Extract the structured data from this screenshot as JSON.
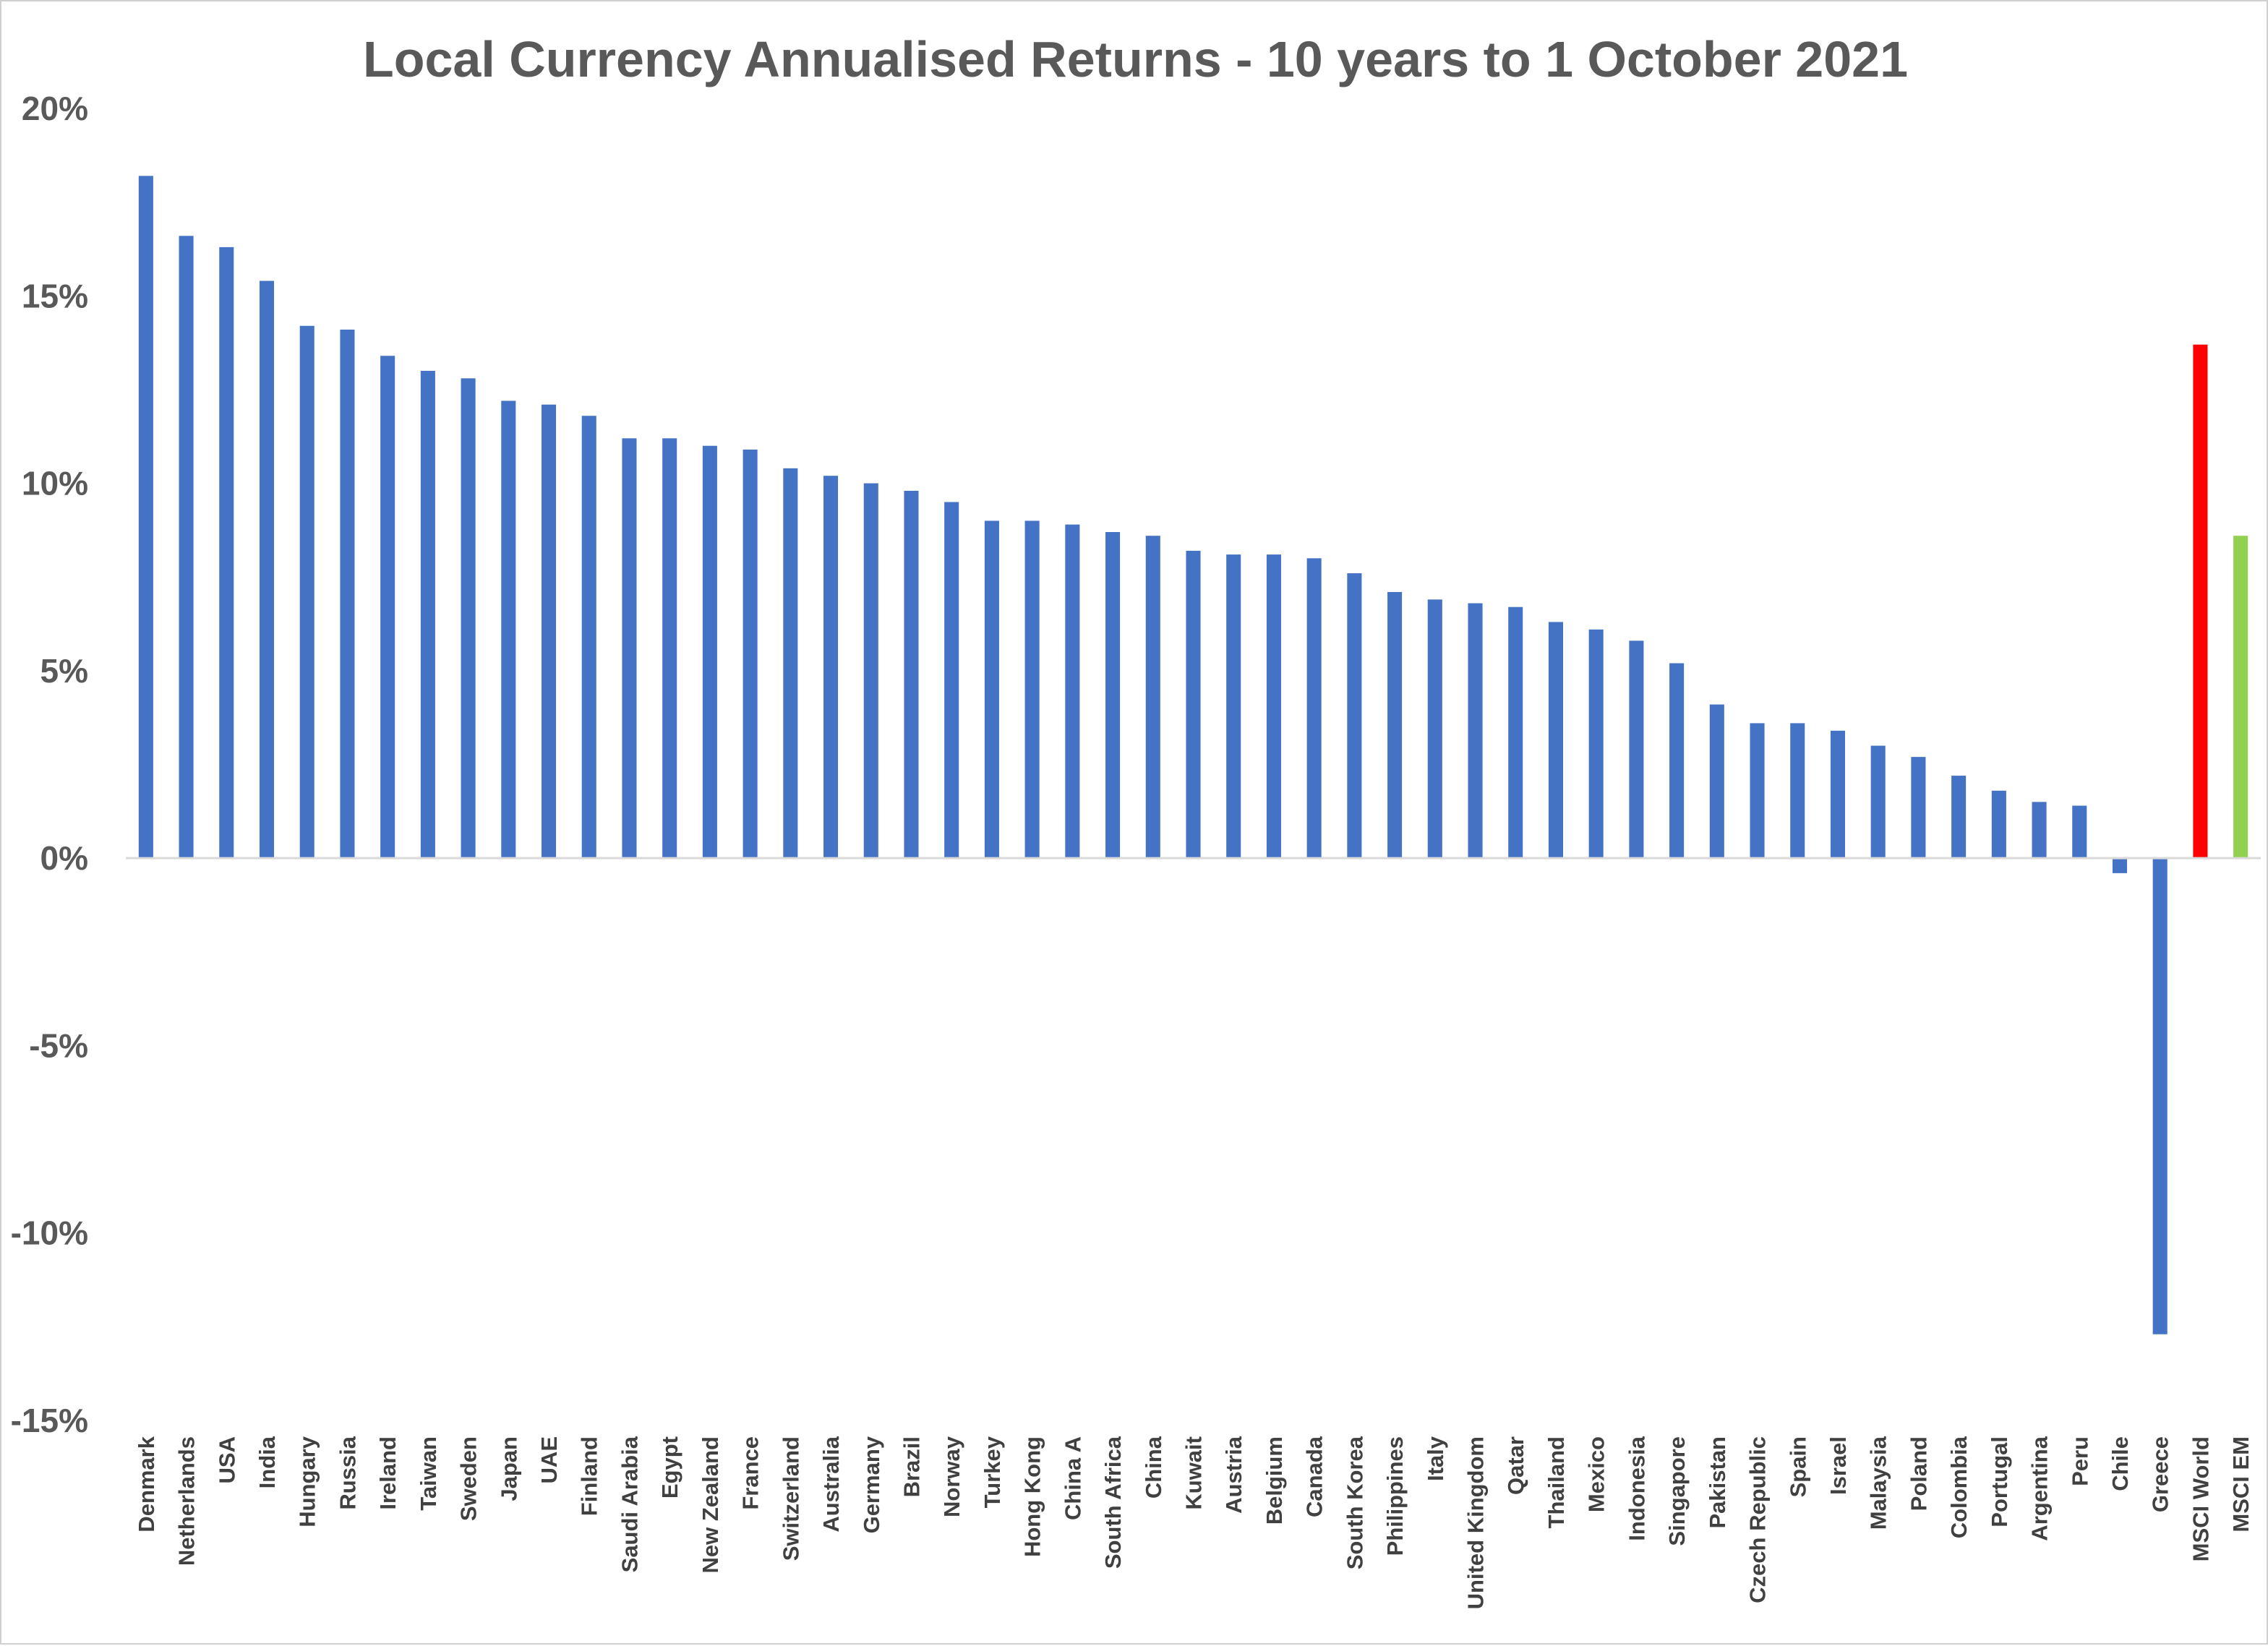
{
  "chart_data": {
    "type": "bar",
    "title": "Local Currency Annualised Returns - 10 years to 1 October 2021",
    "xlabel": "",
    "ylabel": "",
    "ylim": [
      -15,
      20
    ],
    "y_ticks": [
      "20%",
      "15%",
      "10%",
      "5%",
      "0%",
      "-5%",
      "-10%",
      "-15%"
    ],
    "y_tick_values": [
      20,
      15,
      10,
      5,
      0,
      -5,
      -10,
      -15
    ],
    "grid": false,
    "legend": "none",
    "colors": {
      "default": "#4472C4",
      "MSCI World": "#FF0000",
      "MSCI EM": "#92D050",
      "axis": "#D9D9D9"
    },
    "categories": [
      "Denmark",
      "Netherlands",
      "USA",
      "India",
      "Hungary",
      "Russia",
      "Ireland",
      "Taiwan",
      "Sweden",
      "Japan",
      "UAE",
      "Finland",
      "Saudi Arabia",
      "Egypt",
      "New Zealand",
      "France",
      "Switzerland",
      "Australia",
      "Germany",
      "Brazil",
      "Norway",
      "Turkey",
      "Hong Kong",
      "China A",
      "South Africa",
      "China",
      "Kuwait",
      "Austria",
      "Belgium",
      "Canada",
      "South Korea",
      "Philippines",
      "Italy",
      "United Kingdom",
      "Qatar",
      "Thailand",
      "Mexico",
      "Indonesia",
      "Singapore",
      "Pakistan",
      "Czech Republic",
      "Spain",
      "Israel",
      "Malaysia",
      "Poland",
      "Colombia",
      "Portugal",
      "Argentina",
      "Peru",
      "Chile",
      "Greece",
      "MSCI World",
      "MSCI EM"
    ],
    "values": [
      18.2,
      16.6,
      16.3,
      15.4,
      14.2,
      14.1,
      13.4,
      13.0,
      12.8,
      12.2,
      12.1,
      11.8,
      11.2,
      11.2,
      11.0,
      10.9,
      10.4,
      10.2,
      10.0,
      9.8,
      9.5,
      9.0,
      9.0,
      8.9,
      8.7,
      8.6,
      8.2,
      8.1,
      8.1,
      8.0,
      7.6,
      7.1,
      6.9,
      6.8,
      6.7,
      6.3,
      6.1,
      5.8,
      5.2,
      4.1,
      3.6,
      3.6,
      3.4,
      3.0,
      2.7,
      2.2,
      1.8,
      1.5,
      1.4,
      -0.4,
      -12.7,
      13.7,
      8.6
    ]
  }
}
